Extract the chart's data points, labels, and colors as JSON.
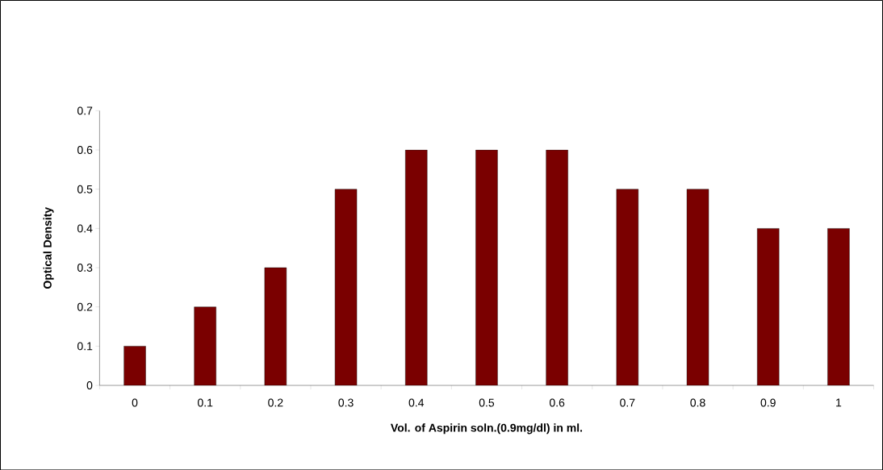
{
  "chart_data": {
    "type": "bar",
    "categories": [
      "0",
      "0.1",
      "0.2",
      "0.3",
      "0.4",
      "0.5",
      "0.6",
      "0.7",
      "0.8",
      "0.9",
      "1"
    ],
    "values": [
      0.1,
      0.2,
      0.3,
      0.5,
      0.6,
      0.6,
      0.6,
      0.5,
      0.5,
      0.4,
      0.4
    ],
    "color": "#7a0000",
    "xlabel": "Vol. of Aspirin soln.(0.9mg/dl) in ml.",
    "ylabel": "Optical Density",
    "ylim": [
      0,
      0.7
    ],
    "yticks": [
      0,
      0.1,
      0.2,
      0.3,
      0.4,
      0.5,
      0.6,
      0.7
    ],
    "grid": false
  }
}
